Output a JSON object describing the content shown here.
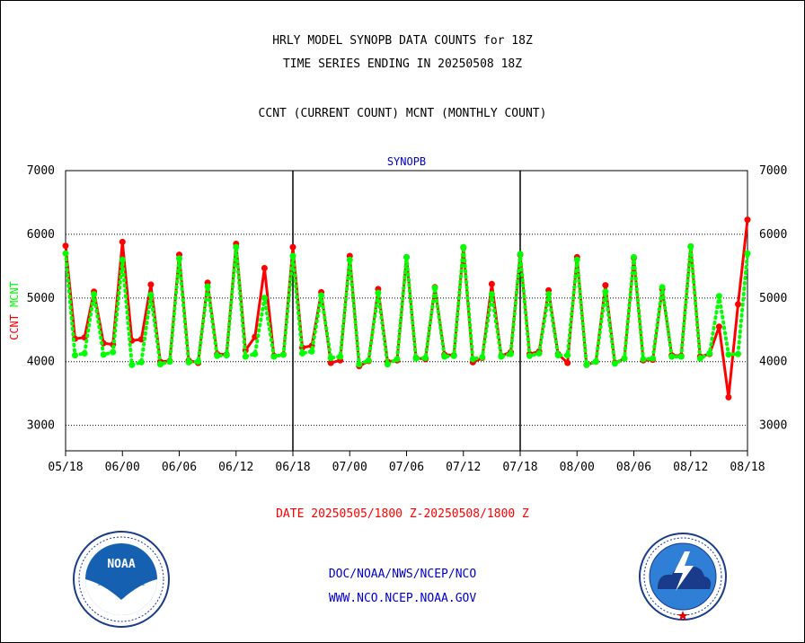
{
  "header": {
    "line1": "HRLY MODEL SYNOPB DATA COUNTS for 18Z",
    "line2": "TIME SERIES ENDING IN 20250508 18Z",
    "line3": "CCNT (CURRENT COUNT) MCNT (MONTHLY COUNT)"
  },
  "footer": {
    "date_range": "DATE 20250505/1800 Z-20250508/1800 Z",
    "org": "DOC/NOAA/NWS/NCEP/NCO",
    "url": "WWW.NCO.NCEP.NOAA.GOV"
  },
  "logos": {
    "left": {
      "name": "noaa-logo",
      "text": "NOAA",
      "ring_text": "NATIONAL OCEANIC AND ATMOSPHERIC ADMINISTRATION · U.S. DEPARTMENT OF COMMERCE"
    },
    "right": {
      "name": "nws-logo",
      "ring_text": "NATIONAL WEATHER SERVICE"
    }
  },
  "colors": {
    "ccnt": "#ff0000",
    "mcnt": "#00ff00",
    "title": "#0000cc",
    "axis": "#000000"
  },
  "chart_data": {
    "type": "line",
    "title": "SYNOPB",
    "ylabel_parts": [
      "CCNT",
      "MCNT"
    ],
    "ylim": [
      2600,
      7000
    ],
    "yticks": [
      3000,
      4000,
      5000,
      6000,
      7000
    ],
    "xticks": [
      "05/18",
      "06/00",
      "06/06",
      "06/12",
      "06/18",
      "07/00",
      "07/06",
      "07/12",
      "07/18",
      "08/00",
      "08/06",
      "08/12",
      "08/18"
    ],
    "day_dividers": [
      "06/18",
      "07/18"
    ],
    "grid": "horizontal dotted",
    "x_hours": [
      0,
      1,
      2,
      3,
      4,
      5,
      6,
      7,
      8,
      9,
      10,
      11,
      12,
      13,
      14,
      15,
      16,
      17,
      18,
      19,
      20,
      21,
      22,
      23,
      24,
      25,
      26,
      27,
      28,
      29,
      30,
      31,
      32,
      33,
      34,
      35,
      36,
      37,
      38,
      39,
      40,
      41,
      42,
      43,
      44,
      45,
      46,
      47,
      48,
      49,
      50,
      51,
      52,
      53,
      54,
      55,
      56,
      57,
      58,
      59,
      60,
      61,
      62,
      63,
      64,
      65,
      66,
      67,
      68,
      69,
      70,
      71,
      72
    ],
    "series": [
      {
        "name": "CCNT",
        "values": [
          5820,
          4360,
          4380,
          5100,
          4290,
          4270,
          5880,
          4330,
          4350,
          5210,
          4000,
          4010,
          5680,
          4020,
          3980,
          5240,
          4120,
          4110,
          5850,
          4180,
          4390,
          5470,
          4090,
          4110,
          5800,
          4220,
          4250,
          5090,
          3980,
          4020,
          5660,
          3930,
          4010,
          5140,
          4000,
          4020,
          5640,
          4060,
          4040,
          5170,
          4110,
          4100,
          5790,
          3990,
          4060,
          5220,
          4090,
          4150,
          5680,
          4120,
          4160,
          5120,
          4120,
          3980,
          5640,
          3950,
          4000,
          5200,
          3980,
          4050,
          5630,
          4020,
          4030,
          5140,
          4100,
          4090,
          5810,
          4080,
          4120,
          4550,
          3440,
          4900,
          6230
        ]
      },
      {
        "name": "MCNT",
        "values": [
          5700,
          4100,
          4130,
          5060,
          4110,
          4150,
          5600,
          3950,
          3990,
          5050,
          3960,
          4000,
          5620,
          3990,
          4000,
          5180,
          4090,
          4100,
          5800,
          4080,
          4120,
          5000,
          4080,
          4110,
          5660,
          4130,
          4160,
          5040,
          4060,
          4080,
          5600,
          3960,
          4020,
          5080,
          3960,
          4040,
          5640,
          4050,
          4060,
          5160,
          4080,
          4090,
          5800,
          4040,
          4070,
          5060,
          4080,
          4120,
          5690,
          4090,
          4130,
          5060,
          4100,
          4100,
          5600,
          3950,
          4000,
          5100,
          3970,
          4050,
          5640,
          4040,
          4050,
          5170,
          4080,
          4080,
          5810,
          4050,
          4130,
          5030,
          4110,
          4120,
          5700
        ]
      }
    ]
  }
}
